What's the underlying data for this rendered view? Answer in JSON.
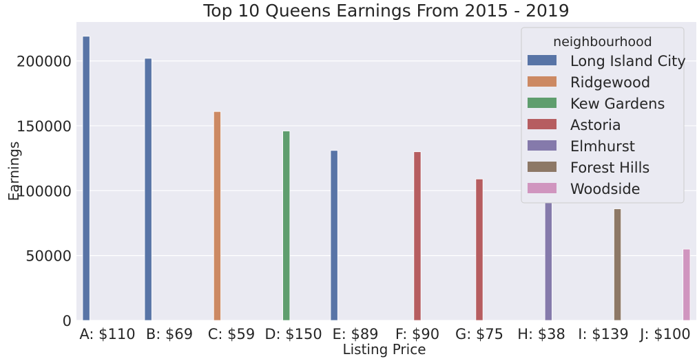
{
  "chart_data": {
    "type": "bar",
    "title": "Top 10 Queens Earnings From 2015 - 2019",
    "xlabel": "Listing Price",
    "ylabel": "Earnings",
    "ylim": [
      0,
      230000
    ],
    "yticks": [
      0,
      50000,
      100000,
      150000,
      200000
    ],
    "grid": true,
    "legend_placement": "top-right",
    "legend_title": "neighbourhood",
    "categories": [
      "A: $110",
      "B: $69",
      "C: $59",
      "D: $150",
      "E: $89",
      "F: $90",
      "G: $75",
      "H: $38",
      "I: $139",
      "J: $100"
    ],
    "hue_order": [
      "Long Island City",
      "Ridgewood",
      "Kew Gardens",
      "Astoria",
      "Elmhurst",
      "Forest Hills",
      "Woodside"
    ],
    "colors": {
      "Long Island City": "#5874a6",
      "Ridgewood": "#cc8963",
      "Kew Gardens": "#5f9e6e",
      "Astoria": "#b65d60",
      "Elmhurst": "#857aab",
      "Forest Hills": "#8d7866",
      "Woodside": "#d095bf"
    },
    "bars": [
      {
        "category": "A: $110",
        "neighbourhood": "Long Island City",
        "value": 219000
      },
      {
        "category": "B: $69",
        "neighbourhood": "Long Island City",
        "value": 202000
      },
      {
        "category": "C: $59",
        "neighbourhood": "Ridgewood",
        "value": 161000
      },
      {
        "category": "D: $150",
        "neighbourhood": "Kew Gardens",
        "value": 146000
      },
      {
        "category": "E: $89",
        "neighbourhood": "Long Island City",
        "value": 131000
      },
      {
        "category": "F: $90",
        "neighbourhood": "Astoria",
        "value": 130000
      },
      {
        "category": "G: $75",
        "neighbourhood": "Astoria",
        "value": 109000
      },
      {
        "category": "H: $38",
        "neighbourhood": "Elmhurst",
        "value": 97000
      },
      {
        "category": "I: $139",
        "neighbourhood": "Forest Hills",
        "value": 86000
      },
      {
        "category": "J: $100",
        "neighbourhood": "Woodside",
        "value": 55000
      }
    ]
  }
}
